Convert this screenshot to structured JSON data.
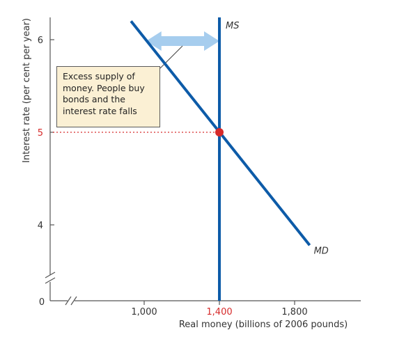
{
  "chart_data": {
    "type": "line",
    "xlabel": "Real money (billions of 2006 pounds)",
    "ylabel": "Interest rate (per cent per year)",
    "xlim": [
      700,
      1900
    ],
    "ylim": [
      3.6,
      6.3
    ],
    "x_ticks": [
      {
        "value": 1000,
        "label": "1,000"
      },
      {
        "value": 1400,
        "label": "1,400"
      },
      {
        "value": 1800,
        "label": "1,800"
      }
    ],
    "y_ticks": [
      {
        "value": 4,
        "label": "4"
      },
      {
        "value": 5,
        "label": "5"
      },
      {
        "value": 6,
        "label": "6"
      }
    ],
    "origin_label": "0",
    "axis_breaks": true,
    "grid": false,
    "series": [
      {
        "name": "MS",
        "type": "vertical",
        "x": 1400,
        "y_range": [
          3.6,
          6.3
        ],
        "color": "#0d5ba8"
      },
      {
        "name": "MD",
        "type": "line",
        "points": [
          {
            "x": 930,
            "y": 6.2
          },
          {
            "x": 1880,
            "y": 3.78
          }
        ],
        "color": "#0d5ba8"
      }
    ],
    "equilibrium": {
      "x": 1400,
      "y": 5,
      "color": "#d62a2a"
    },
    "highlight_color": "#d62a2a",
    "arrow": {
      "x_from": 1010,
      "x_to": 1400,
      "y": 6,
      "color": "#a6cdee"
    },
    "annotation": {
      "lines": [
        "Excess supply of",
        "money. People buy",
        "bonds and the",
        "interest rate falls"
      ]
    }
  }
}
